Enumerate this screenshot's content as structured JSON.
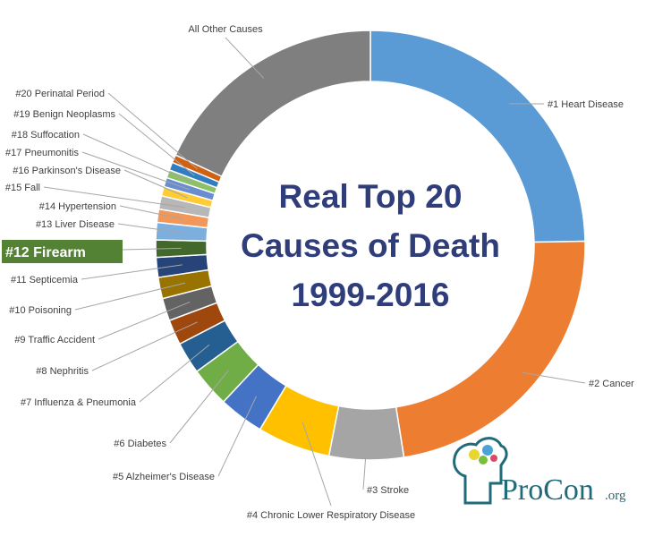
{
  "chart_data": {
    "type": "pie",
    "variant": "donut",
    "title_lines": [
      "Real Top 20",
      "Causes of Death",
      "1999-2016"
    ],
    "highlighted_label": "#12 Firearm",
    "highlight_color": "#548235",
    "legend": "none",
    "slices": [
      {
        "label": "#1 Heart Disease",
        "value": 24.7,
        "color": "#5b9bd5"
      },
      {
        "label": "#2 Cancer",
        "value": 22.8,
        "color": "#ed7d31"
      },
      {
        "label": "#3 Stroke",
        "value": 5.6,
        "color": "#a5a5a5"
      },
      {
        "label": "#4 Chronic Lower Respiratory Disease",
        "value": 5.5,
        "color": "#ffc000"
      },
      {
        "label": "#5 Alzheimer's Disease",
        "value": 3.4,
        "color": "#4472c4"
      },
      {
        "label": "#6 Diabetes",
        "value": 3.0,
        "color": "#70ad47"
      },
      {
        "label": "#7 Influenza & Pneumonia",
        "value": 2.4,
        "color": "#255e91"
      },
      {
        "label": "#8 Nephritis",
        "value": 1.9,
        "color": "#9e480e"
      },
      {
        "label": "#9 Traffic Accident",
        "value": 1.7,
        "color": "#636363"
      },
      {
        "label": "#10 Poisoning",
        "value": 1.6,
        "color": "#997300"
      },
      {
        "label": "#11 Septicemia",
        "value": 1.5,
        "color": "#264478"
      },
      {
        "label": "#12 Firearm",
        "value": 1.3,
        "color": "#43682b"
      },
      {
        "label": "#13 Liver Disease",
        "value": 1.3,
        "color": "#7cafdd"
      },
      {
        "label": "#14 Hypertension",
        "value": 1.0,
        "color": "#f1975a"
      },
      {
        "label": "#15 Fall",
        "value": 1.0,
        "color": "#b7b7b7"
      },
      {
        "label": "#16 Parkinson's Disease",
        "value": 0.7,
        "color": "#ffcd33"
      },
      {
        "label": "#17 Pneumonitis",
        "value": 0.7,
        "color": "#698ed0"
      },
      {
        "label": "#18 Suffocation",
        "value": 0.6,
        "color": "#8cc168"
      },
      {
        "label": "#19 Benign Neoplasms",
        "value": 0.6,
        "color": "#327dc2"
      },
      {
        "label": "#20 Perinatal Period",
        "value": 0.6,
        "color": "#d26012"
      },
      {
        "label": "All Other Causes",
        "value": 18.1,
        "color": "#7f7f7f"
      }
    ]
  },
  "logo": {
    "brand": "ProCon",
    "suffix": ".org",
    "colors": {
      "text": "#1f6b7a",
      "accent": "#2e9bc4"
    }
  }
}
